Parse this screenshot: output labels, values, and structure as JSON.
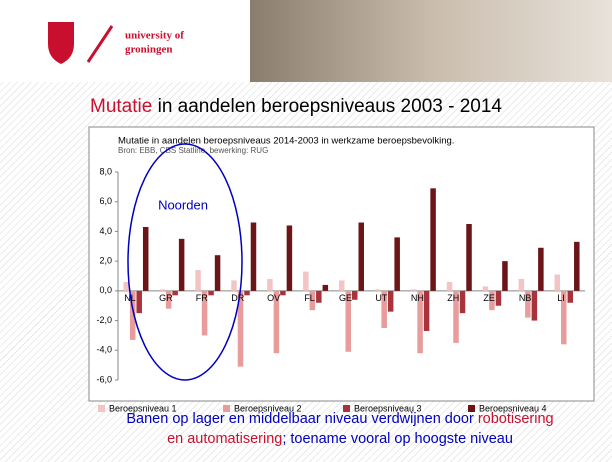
{
  "slide": {
    "logo_text": [
      "university of",
      "groningen"
    ],
    "title_parts": [
      "Mutatie",
      " in aandelen beroepsniveaus 2003 - 2014"
    ],
    "caption_lines": [
      [
        "Banen op lager en middelbaar niveau verdwijnen door ",
        "robotisering"
      ],
      [
        "en automatisering",
        "; toename vooral op hoogste niveau"
      ]
    ]
  },
  "chart_data": {
    "type": "bar",
    "title": "Mutatie in aandelen beroepsniveaus 2014-2003 in werkzame beroepsbevolking.",
    "subtitle": "Bron: EBB, CBS Statline, bewerking: RUG",
    "annotations": [
      "Noorden"
    ],
    "categories": [
      "NL",
      "GR",
      "FR",
      "DR",
      "OV",
      "FL",
      "GE",
      "UT",
      "NH",
      "ZH",
      "ZE",
      "NB",
      "LI"
    ],
    "series": [
      {
        "name": "Beroepsniveau 1",
        "color": "#f3c4c4",
        "values": [
          0.6,
          0.1,
          1.4,
          0.7,
          0.8,
          1.3,
          0.7,
          0.1,
          0.1,
          0.6,
          0.3,
          0.8,
          1.1
        ]
      },
      {
        "name": "Beroepsniveau 2",
        "color": "#e89c9c",
        "values": [
          -3.3,
          -1.2,
          -3.0,
          -5.1,
          -4.2,
          -1.3,
          -4.1,
          -2.5,
          -4.2,
          -3.5,
          -1.3,
          -1.8,
          -3.6
        ]
      },
      {
        "name": "Beroepsniveau 3",
        "color": "#a9333b",
        "values": [
          -1.5,
          -0.3,
          -0.3,
          -0.3,
          -0.3,
          -0.8,
          -0.6,
          -1.4,
          -2.7,
          -1.5,
          -1.0,
          -2.0,
          -0.8
        ]
      },
      {
        "name": "Beroepsniveau 4",
        "color": "#6b1519",
        "values": [
          4.3,
          3.5,
          2.4,
          4.6,
          4.4,
          0.4,
          4.6,
          3.6,
          6.9,
          4.5,
          2.0,
          2.9,
          3.3
        ]
      }
    ],
    "ylim": [
      -6,
      8
    ],
    "yticks": [
      {
        "value": -6,
        "label": "-6,0"
      },
      {
        "value": -4,
        "label": "-4,0"
      },
      {
        "value": -2,
        "label": "-2,0"
      },
      {
        "value": 0,
        "label": "0,0"
      },
      {
        "value": 2,
        "label": "2,0"
      },
      {
        "value": 4,
        "label": "4,0"
      },
      {
        "value": 6,
        "label": "6,0"
      },
      {
        "value": 8,
        "label": "8,0"
      }
    ],
    "grid": false,
    "legend": "bottom"
  }
}
